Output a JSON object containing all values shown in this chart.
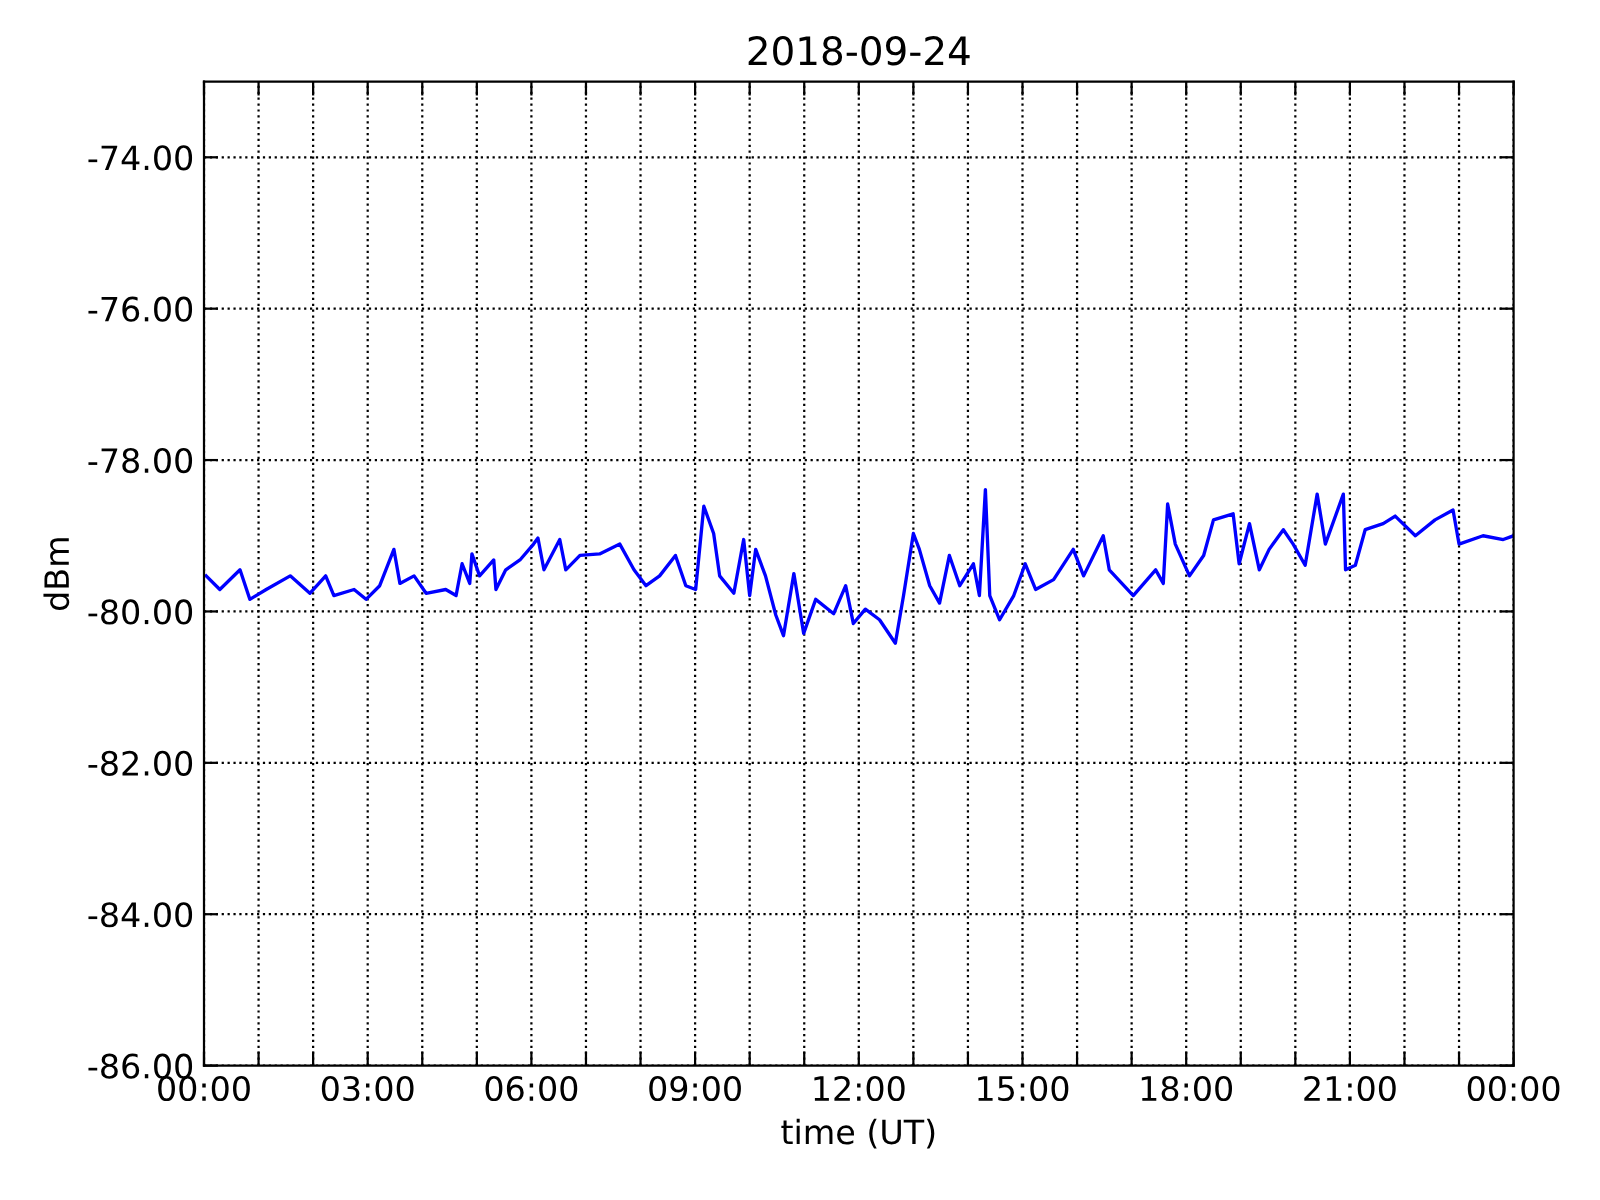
{
  "chart_data": {
    "type": "line",
    "title": "2018-09-24",
    "xlabel": "time (UT)",
    "ylabel": "dBm",
    "x": [
      0.04,
      0.29,
      0.66,
      0.84,
      1.14,
      1.58,
      1.94,
      2.23,
      2.38,
      2.75,
      2.97,
      3.22,
      3.48,
      3.59,
      3.85,
      4.07,
      4.43,
      4.62,
      4.73,
      4.87,
      4.91,
      5.05,
      5.31,
      5.35,
      5.53,
      5.79,
      6.04,
      6.12,
      6.23,
      6.52,
      6.63,
      6.89,
      7.25,
      7.62,
      7.88,
      8.1,
      8.35,
      8.64,
      8.83,
      9.01,
      9.16,
      9.34,
      9.45,
      9.71,
      9.89,
      10.0,
      10.11,
      10.29,
      10.48,
      10.62,
      10.81,
      10.99,
      11.21,
      11.54,
      11.76,
      11.9,
      12.12,
      12.38,
      12.67,
      12.82,
      13.0,
      13.11,
      13.3,
      13.48,
      13.66,
      13.85,
      14.1,
      14.21,
      14.32,
      14.4,
      14.58,
      14.84,
      15.05,
      15.24,
      15.57,
      15.93,
      16.12,
      16.48,
      16.59,
      17.03,
      17.44,
      17.58,
      17.66,
      17.8,
      18.06,
      18.32,
      18.5,
      18.86,
      18.97,
      19.16,
      19.34,
      19.52,
      19.78,
      19.96,
      20.18,
      20.4,
      20.55,
      20.88,
      20.92,
      21.1,
      21.28,
      21.61,
      21.83,
      22.2,
      22.56,
      22.89,
      23.0,
      23.44,
      23.81,
      24.0
    ],
    "series": [
      {
        "color": "#0000ff",
        "values": [
          -79.53,
          -79.71,
          -79.45,
          -79.84,
          -79.71,
          -79.53,
          -79.76,
          -79.53,
          -79.79,
          -79.71,
          -79.84,
          -79.66,
          -79.18,
          -79.63,
          -79.53,
          -79.76,
          -79.71,
          -79.79,
          -79.37,
          -79.63,
          -79.24,
          -79.53,
          -79.32,
          -79.71,
          -79.45,
          -79.32,
          -79.11,
          -79.03,
          -79.45,
          -79.05,
          -79.45,
          -79.26,
          -79.24,
          -79.11,
          -79.45,
          -79.66,
          -79.53,
          -79.26,
          -79.66,
          -79.71,
          -78.61,
          -78.97,
          -79.53,
          -79.76,
          -79.05,
          -79.79,
          -79.18,
          -79.53,
          -80.05,
          -80.32,
          -79.5,
          -80.29,
          -79.84,
          -80.03,
          -79.66,
          -80.16,
          -79.97,
          -80.11,
          -80.42,
          -79.79,
          -78.97,
          -79.18,
          -79.66,
          -79.89,
          -79.26,
          -79.66,
          -79.37,
          -79.79,
          -78.39,
          -79.79,
          -80.11,
          -79.79,
          -79.37,
          -79.71,
          -79.58,
          -79.18,
          -79.53,
          -79.0,
          -79.45,
          -79.79,
          -79.45,
          -79.63,
          -78.58,
          -79.11,
          -79.53,
          -79.26,
          -78.79,
          -78.71,
          -79.37,
          -78.84,
          -79.45,
          -79.18,
          -78.92,
          -79.11,
          -79.39,
          -78.45,
          -79.11,
          -78.45,
          -79.45,
          -79.39,
          -78.92,
          -78.84,
          -78.74,
          -79.0,
          -78.79,
          -78.66,
          -79.11,
          -79.0,
          -79.05,
          -79.0
        ]
      }
    ],
    "xlim": [
      0,
      24
    ],
    "xticks": [
      {
        "value": 0,
        "label": "00:00"
      },
      {
        "value": 1,
        "label": null
      },
      {
        "value": 2,
        "label": null
      },
      {
        "value": 3,
        "label": "03:00"
      },
      {
        "value": 4,
        "label": null
      },
      {
        "value": 5,
        "label": null
      },
      {
        "value": 6,
        "label": "06:00"
      },
      {
        "value": 7,
        "label": null
      },
      {
        "value": 8,
        "label": null
      },
      {
        "value": 9,
        "label": "09:00"
      },
      {
        "value": 10,
        "label": null
      },
      {
        "value": 11,
        "label": null
      },
      {
        "value": 12,
        "label": "12:00"
      },
      {
        "value": 13,
        "label": null
      },
      {
        "value": 14,
        "label": null
      },
      {
        "value": 15,
        "label": "15:00"
      },
      {
        "value": 16,
        "label": null
      },
      {
        "value": 17,
        "label": null
      },
      {
        "value": 18,
        "label": "18:00"
      },
      {
        "value": 19,
        "label": null
      },
      {
        "value": 20,
        "label": null
      },
      {
        "value": 21,
        "label": "21:00"
      },
      {
        "value": 22,
        "label": null
      },
      {
        "value": 23,
        "label": null
      },
      {
        "value": 24,
        "label": "00:00"
      }
    ],
    "ylim": [
      -86,
      -73
    ],
    "yticks": [
      {
        "value": -86,
        "label": "-86.00"
      },
      {
        "value": -84,
        "label": "-84.00"
      },
      {
        "value": -82,
        "label": "-82.00"
      },
      {
        "value": -80,
        "label": "-80.00"
      },
      {
        "value": -78,
        "label": "-78.00"
      },
      {
        "value": -76,
        "label": "-76.00"
      },
      {
        "value": -74,
        "label": "-74.00"
      }
    ],
    "grid": true,
    "legend": false,
    "marker": "none",
    "line_style": "solid"
  }
}
